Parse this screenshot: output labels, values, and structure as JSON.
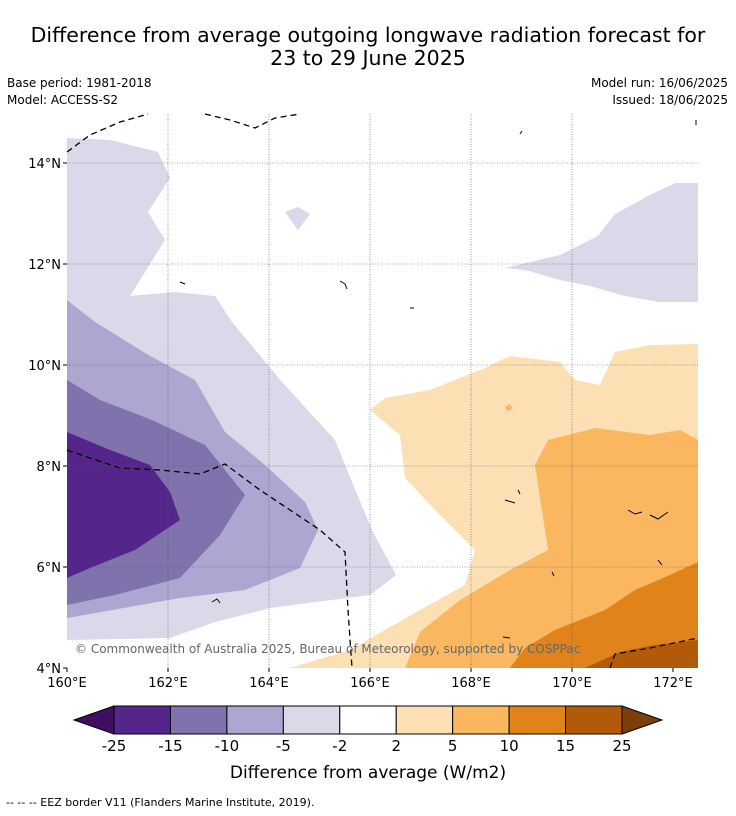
{
  "header": {
    "title_line1": "Difference from average outgoing longwave radiation forecast for",
    "title_line2": "23 to 29 June 2025",
    "base_period": "Base period: 1981-2018",
    "model": "Model: ACCESS-S2",
    "model_run": "Model run: 16/06/2025",
    "issued": "Issued: 18/06/2025"
  },
  "map": {
    "lon_ticks": [
      "160°E",
      "162°E",
      "164°E",
      "166°E",
      "168°E",
      "170°E",
      "172°E"
    ],
    "lat_ticks": [
      "14°N",
      "12°N",
      "10°N",
      "8°N",
      "6°N",
      "4°N"
    ],
    "copyright": "© Commonwealth of Australia 2025, Bureau of Meteorology, supported by COSPPac"
  },
  "colorbar": {
    "ticks": [
      "-25",
      "-15",
      "-10",
      "-5",
      "-2",
      "2",
      "5",
      "10",
      "15",
      "25"
    ],
    "colors": [
      "#3f0f63",
      "#54268b",
      "#7f72ad",
      "#ada6d0",
      "#d9d9ea",
      "#ffffff",
      "#fddfb4",
      "#fab760",
      "#e0831a",
      "#b35a0a",
      "#7e3e0b"
    ],
    "label": "Difference from average (W/m2)"
  },
  "legend_note": "--  --  -- EEZ border V11 (Flanders Marine Institute, 2019)."
}
